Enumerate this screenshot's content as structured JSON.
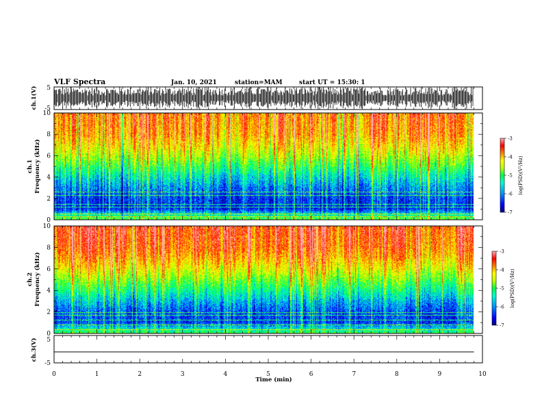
{
  "header": {
    "title": "VLF Spectra",
    "date": "Jan. 10, 2021",
    "station": "station=MAM",
    "start": "start UT =  15:30: 1"
  },
  "colorbar": {
    "label": "log(PSD)(V²/Hz)",
    "ticks": [
      "-3",
      "-4",
      "-5",
      "-6",
      "-7"
    ],
    "range": [
      -7,
      -3
    ],
    "colors": [
      "#000080",
      "#0000ff",
      "#0090ff",
      "#00ffd0",
      "#00ff40",
      "#c0ff00",
      "#ffff00",
      "#ff8000",
      "#ff0000",
      "#ffb0b0"
    ]
  },
  "chart_data": [
    {
      "type": "line",
      "panel": "ch1-waveform",
      "ylabel": "ch.1(V)",
      "ylim": [
        -5,
        5
      ],
      "yticks": [
        "5",
        "-5"
      ],
      "description_of_trace": "dense bursty waveform, amplitude saturating near ±5 V"
    },
    {
      "type": "heatmap",
      "panel": "ch1-spectrogram",
      "ylabel_top": "ch.1",
      "ylabel": "Frequency (kHz)",
      "ylim": [
        0,
        10
      ],
      "yticks": [
        "10",
        "8",
        "6",
        "4",
        "2",
        "0"
      ],
      "xlim": [
        0,
        10
      ],
      "zlim": [
        -7,
        -3
      ],
      "band_profile_freq_khz": [
        0,
        1,
        2,
        3,
        4,
        5,
        6,
        7,
        8,
        9,
        10
      ],
      "band_profile_logpsd": [
        -5.0,
        -6.5,
        -6.4,
        -6.1,
        -5.7,
        -5.2,
        -4.7,
        -4.3,
        -4.0,
        -3.9,
        -3.8
      ],
      "horizontal_lines_khz": [
        0.3,
        0.6,
        1.2,
        1.5,
        2.3,
        2.6
      ]
    },
    {
      "type": "heatmap",
      "panel": "ch2-spectrogram",
      "ylabel_top": "ch.2",
      "ylabel": "Frequency (kHz)",
      "ylim": [
        0,
        10
      ],
      "yticks": [
        "10",
        "8",
        "6",
        "4",
        "2",
        "0"
      ],
      "xlim": [
        0,
        10
      ],
      "zlim": [
        -7,
        -3
      ],
      "band_profile_freq_khz": [
        0,
        1,
        2,
        3,
        4,
        5,
        6,
        7,
        8,
        9,
        10
      ],
      "band_profile_logpsd": [
        -5.2,
        -6.4,
        -6.3,
        -5.9,
        -5.4,
        -4.9,
        -4.4,
        -4.0,
        -3.7,
        -3.6,
        -3.5
      ],
      "horizontal_lines_khz": [
        0.4,
        0.8,
        1.3,
        1.7,
        2.0
      ]
    },
    {
      "type": "line",
      "panel": "ch3-waveform",
      "ylabel": "ch.3(V)",
      "ylim": [
        -5,
        5
      ],
      "yticks": [
        "5",
        "-5"
      ],
      "x": [
        0,
        9.8
      ],
      "y": [
        -1,
        -1
      ]
    }
  ],
  "xaxis": {
    "label": "Time (min)",
    "xlim": [
      0,
      10
    ],
    "ticks": [
      "0",
      "1",
      "2",
      "3",
      "4",
      "5",
      "6",
      "7",
      "8",
      "9",
      "10"
    ]
  }
}
